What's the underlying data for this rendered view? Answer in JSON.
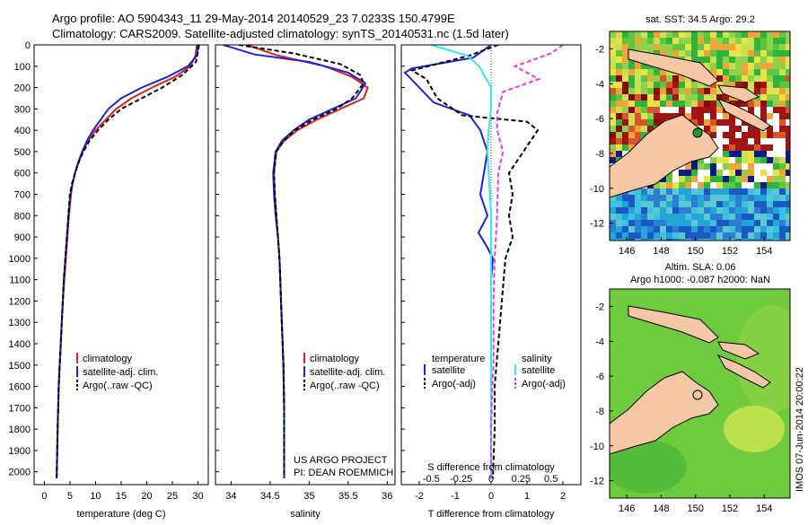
{
  "colors": {
    "climatology": "#e0201b",
    "satellite": "#1426d6",
    "argo": "#000000",
    "sat_salinity": "#36e6f0",
    "argo_salinity": "#ee35e6",
    "land": "#f6c7a5"
  },
  "title": {
    "line1": "Argo profile: AO 5904343_11 29-May-2014 20140529_23 7.0233S 150.4799E",
    "line2": "Climatology: CARS2009. Satellite-adjusted climatology: synTS_20140531.nc (1.5d later)"
  },
  "depth_axis": {
    "ticks": [
      "0",
      "100",
      "200",
      "300",
      "400",
      "500",
      "600",
      "700",
      "800",
      "900",
      "1000",
      "1100",
      "1200",
      "1300",
      "1400",
      "1500",
      "1600",
      "1700",
      "1800",
      "1900",
      "2000"
    ],
    "range": [
      0,
      2060
    ]
  },
  "panels": {
    "temperature": {
      "xlabel": "temperature (deg C)",
      "ticks": [
        "0",
        "5",
        "10",
        "15",
        "20",
        "25",
        "30"
      ],
      "xlim": [
        -2,
        32
      ],
      "legend": [
        "climatology",
        "satellite-adj. clim.",
        "Argo(..raw -QC)"
      ]
    },
    "salinity": {
      "xlabel": "salinity",
      "ticks": [
        "34",
        "34.5",
        "35",
        "35.5",
        "36"
      ],
      "xlim": [
        33.8,
        36.1
      ],
      "legend": [
        "climatology",
        "satellite-adj. clim.",
        "Argo(..raw -QC)"
      ],
      "credit1": "US ARGO PROJECT",
      "credit2": "PI: DEAN ROEMMICH"
    },
    "difference": {
      "xlabel": "T difference from climatology",
      "top_label": "S difference from climatology",
      "t_ticks": [
        "-2",
        "-1",
        "0",
        "1",
        "2"
      ],
      "t_xlim": [
        -2.5,
        2.5
      ],
      "s_ticks": [
        "-0.5",
        "-0.25",
        "0",
        "0.25",
        "0.5"
      ],
      "s_xlim": [
        -0.75,
        0.75
      ],
      "legend_temp_title": "temperature",
      "legend_sal_title": "salinity",
      "legend_temp": [
        "satellite",
        "Argo(-adj)"
      ],
      "legend_sal": [
        "satellite",
        "Argo(-adj)"
      ]
    }
  },
  "maps": {
    "sst": {
      "title": "sat. SST: 34.5 Argo: 29.2",
      "x_ticks": [
        "146",
        "148",
        "150",
        "152",
        "154"
      ],
      "y_ticks": [
        "-2",
        "-4",
        "-6",
        "-8",
        "-10",
        "-12"
      ],
      "lon_range": [
        145,
        155.5
      ],
      "lat_range": [
        -13,
        -1
      ]
    },
    "sla": {
      "title1": "Altim. SLA: 0.06",
      "title2": "Argo h1000: -0.087 h2000: NaN",
      "x_ticks": [
        "146",
        "148",
        "150",
        "152",
        "154"
      ],
      "y_ticks": [
        "-2",
        "-4",
        "-6",
        "-8",
        "-10",
        "-12"
      ],
      "lon_range": [
        145,
        155.5
      ],
      "lat_range": [
        -13,
        -1
      ]
    }
  },
  "timestamp": "IMOS 07-Jun-2014 20:00:22",
  "chart_data": [
    {
      "type": "line",
      "title": "temperature profile",
      "xlabel": "temperature (deg C)",
      "ylabel": "depth",
      "xlim": [
        -2,
        32
      ],
      "ylim": [
        2060,
        0
      ],
      "series": [
        {
          "name": "climatology",
          "x": [
            29.8,
            29.5,
            28.5,
            25.5,
            21,
            17,
            14,
            12,
            10,
            8.5,
            7.5,
            6.7,
            6,
            5.5,
            5.2,
            4.8,
            4.5,
            4.2,
            3.9,
            3.6,
            3.4,
            3.2,
            3,
            2.8,
            2.6,
            2.4
          ],
          "y": [
            0,
            50,
            100,
            150,
            200,
            250,
            300,
            350,
            400,
            450,
            500,
            550,
            600,
            650,
            700,
            800,
            900,
            1000,
            1100,
            1200,
            1300,
            1400,
            1500,
            1600,
            1800,
            2030
          ]
        },
        {
          "name": "satellite-adj. clim.",
          "x": [
            30,
            29.8,
            28,
            24,
            19,
            15,
            12.5,
            11,
            9.5,
            8.3,
            7.4,
            6.6,
            6,
            5.5,
            5.1,
            4.7,
            4.4,
            4.1,
            3.8,
            3.6,
            3.4,
            3.2,
            3,
            2.8,
            2.6,
            2.4
          ],
          "y": [
            0,
            50,
            100,
            150,
            200,
            250,
            300,
            350,
            400,
            450,
            500,
            550,
            600,
            650,
            700,
            800,
            900,
            1000,
            1100,
            1200,
            1300,
            1400,
            1500,
            1600,
            1800,
            2030
          ]
        },
        {
          "name": "Argo(..raw -QC)",
          "x": [
            30.2,
            30,
            29.6,
            27,
            23,
            19,
            15,
            12.5,
            10.5,
            8.8,
            7.6,
            6.7,
            6,
            5.4,
            5,
            4.7,
            4.4,
            4.1,
            3.8,
            3.6,
            3.4,
            3.2,
            3,
            2.8,
            2.6,
            2.4
          ],
          "y": [
            0,
            30,
            80,
            140,
            200,
            250,
            300,
            350,
            400,
            450,
            500,
            550,
            600,
            650,
            700,
            800,
            900,
            1000,
            1100,
            1200,
            1300,
            1400,
            1500,
            1600,
            1800,
            2030
          ]
        }
      ]
    },
    {
      "type": "line",
      "title": "salinity profile",
      "xlabel": "salinity",
      "ylabel": "depth",
      "xlim": [
        33.8,
        36.1
      ],
      "ylim": [
        2060,
        0
      ],
      "series": [
        {
          "name": "climatology",
          "x": [
            34.2,
            34.6,
            35.2,
            35.55,
            35.75,
            35.7,
            35.4,
            35.1,
            34.85,
            34.68,
            34.58,
            34.55,
            34.56,
            34.58,
            34.6,
            34.62,
            34.63,
            34.64,
            34.65,
            34.66,
            34.67,
            34.68,
            34.68
          ],
          "y": [
            0,
            50,
            100,
            150,
            200,
            250,
            300,
            350,
            400,
            450,
            500,
            600,
            700,
            800,
            900,
            1000,
            1100,
            1200,
            1300,
            1400,
            1500,
            1700,
            2030
          ]
        },
        {
          "name": "satellite-adj. clim.",
          "x": [
            33.9,
            34.3,
            35,
            35.5,
            35.72,
            35.6,
            35.3,
            35.0,
            34.8,
            34.65,
            34.57,
            34.54,
            34.55,
            34.57,
            34.6,
            34.62,
            34.63,
            34.64,
            34.65,
            34.66,
            34.67,
            34.68,
            34.68
          ],
          "y": [
            0,
            45,
            80,
            130,
            180,
            250,
            300,
            350,
            400,
            450,
            500,
            600,
            700,
            800,
            900,
            1000,
            1100,
            1200,
            1300,
            1400,
            1500,
            1700,
            2030
          ]
        },
        {
          "name": "Argo(..raw -QC)",
          "x": [
            34.1,
            34.8,
            35.4,
            35.65,
            35.7,
            35.55,
            35.35,
            35.05,
            34.82,
            34.67,
            34.58,
            34.55,
            34.56,
            34.58,
            34.6,
            34.62,
            34.63,
            34.64,
            34.65,
            34.66,
            34.67,
            34.68,
            34.68
          ],
          "y": [
            0,
            40,
            90,
            140,
            180,
            250,
            300,
            350,
            400,
            450,
            500,
            600,
            700,
            800,
            900,
            1000,
            1100,
            1200,
            1300,
            1400,
            1500,
            1700,
            2030
          ]
        }
      ]
    },
    {
      "type": "line",
      "title": "difference from climatology",
      "xlabel": "T difference from climatology",
      "ylabel": "depth",
      "xlim": [
        -2.5,
        2.5
      ],
      "ylim": [
        2060,
        0
      ],
      "series": [
        {
          "name": "temperature satellite",
          "x": [
            0,
            -0.5,
            -2.2,
            -2.4,
            -1.6,
            -0.6,
            -0.3,
            -0.1,
            -0.2,
            -0.3,
            -0.1,
            -0.35,
            -0.1,
            0.05,
            0,
            0,
            0,
            0,
            0
          ],
          "y": [
            0,
            60,
            110,
            130,
            270,
            330,
            400,
            500,
            600,
            700,
            800,
            880,
            950,
            1000,
            1100,
            1300,
            1500,
            1700,
            2030
          ]
        },
        {
          "name": "temperature Argo(-adj)",
          "x": [
            0.2,
            -0.6,
            -2.2,
            -1.8,
            -1.5,
            -0.8,
            1,
            1.3,
            0.9,
            0.5,
            0.6,
            0.5,
            0.6,
            0.4,
            0.3,
            0.2,
            0.1,
            0.1,
            0.05
          ],
          "y": [
            0,
            50,
            120,
            160,
            250,
            330,
            360,
            400,
            500,
            600,
            700,
            800,
            900,
            1000,
            1200,
            1400,
            1600,
            1800,
            2030
          ]
        },
        {
          "name": "salinity satellite",
          "x": [
            -0.5,
            -0.2,
            -0.1,
            -0.05,
            0,
            0,
            -0.02,
            -0.03,
            -0.02,
            0,
            0,
            0,
            0,
            0,
            0,
            0,
            0
          ],
          "y": [
            0,
            50,
            100,
            150,
            200,
            300,
            400,
            500,
            600,
            800,
            1000,
            1200,
            1400,
            1600,
            1800,
            1900,
            2030
          ]
        },
        {
          "name": "salinity Argo(-adj)",
          "x": [
            0.6,
            0.5,
            0.2,
            0.4,
            0.1,
            0.05,
            0.05,
            0.1,
            0.06,
            0.05,
            0.03,
            0.02,
            0.02,
            0.02,
            0.01,
            0,
            0
          ],
          "y": [
            0,
            40,
            100,
            160,
            220,
            320,
            400,
            500,
            600,
            800,
            1000,
            1200,
            1400,
            1500,
            1600,
            1800,
            2030
          ]
        }
      ]
    }
  ]
}
